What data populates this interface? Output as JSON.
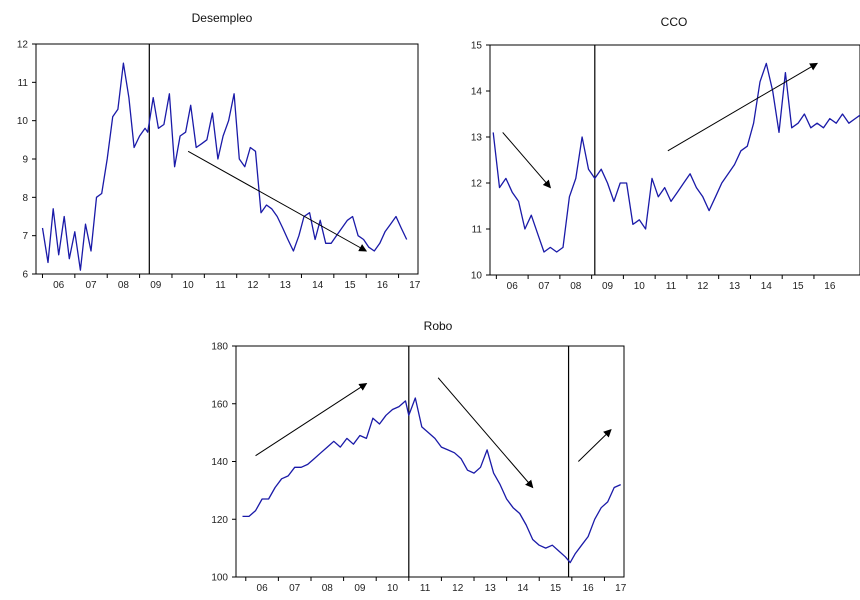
{
  "chart_data": [
    {
      "type": "line",
      "title": "Desempleo",
      "xlabel": "",
      "ylabel": "",
      "ylim": [
        6,
        12
      ],
      "yticks": [
        6,
        7,
        8,
        9,
        10,
        11,
        12
      ],
      "x_tick_labels": [
        "06",
        "07",
        "08",
        "09",
        "10",
        "11",
        "12",
        "13",
        "14",
        "15",
        "16",
        "17"
      ],
      "grid": false,
      "line_color": "#1a1aa8",
      "vertical_markers": [
        {
          "label": "09",
          "x": 2009.3
        }
      ],
      "series": [
        {
          "x": [
            2006.0,
            2006.17,
            2006.33,
            2006.5,
            2006.67,
            2006.83,
            2007.0,
            2007.17,
            2007.33,
            2007.5,
            2007.67,
            2007.83,
            2008.0,
            2008.17,
            2008.33,
            2008.5,
            2008.67,
            2008.83,
            2009.0,
            2009.17,
            2009.25,
            2009.42,
            2009.58,
            2009.75,
            2009.92,
            2010.08,
            2010.25,
            2010.42,
            2010.58,
            2010.75,
            2010.92,
            2011.08,
            2011.25,
            2011.42,
            2011.58,
            2011.75,
            2011.92,
            2012.08,
            2012.25,
            2012.42,
            2012.58,
            2012.75,
            2012.92,
            2013.08,
            2013.25,
            2013.42,
            2013.58,
            2013.75,
            2013.92,
            2014.08,
            2014.25,
            2014.42,
            2014.58,
            2014.75,
            2014.92,
            2015.08,
            2015.25,
            2015.42,
            2015.58,
            2015.75,
            2015.92,
            2016.08,
            2016.25,
            2016.42,
            2016.58,
            2016.75,
            2016.92,
            2017.08,
            2017.25
          ],
          "values": [
            7.2,
            6.3,
            7.7,
            6.5,
            7.5,
            6.4,
            7.1,
            6.1,
            7.3,
            6.6,
            8.0,
            8.1,
            9.0,
            10.1,
            10.3,
            11.5,
            10.6,
            9.3,
            9.6,
            9.8,
            9.7,
            10.6,
            9.8,
            9.9,
            10.7,
            8.8,
            9.6,
            9.7,
            10.4,
            9.3,
            9.4,
            9.5,
            10.2,
            9.0,
            9.6,
            10.0,
            10.7,
            9.0,
            8.8,
            9.3,
            9.2,
            7.6,
            7.8,
            7.7,
            7.5,
            7.2,
            6.9,
            6.6,
            7.0,
            7.5,
            7.6,
            6.9,
            7.4,
            6.8,
            6.8,
            7.0,
            7.2,
            7.4,
            7.5,
            7.0,
            6.9,
            6.7,
            6.6,
            6.8,
            7.1,
            7.3,
            7.5,
            7.2,
            6.9
          ]
        }
      ],
      "annotations": [
        {
          "type": "arrow",
          "from": [
            2010.5,
            9.2
          ],
          "to": [
            2016.0,
            6.6
          ]
        }
      ]
    },
    {
      "type": "line",
      "title": "CCO",
      "xlabel": "",
      "ylabel": "",
      "ylim": [
        10,
        15
      ],
      "yticks": [
        10,
        11,
        12,
        13,
        14,
        15
      ],
      "x_tick_labels": [
        "06",
        "07",
        "08",
        "09",
        "10",
        "11",
        "12",
        "13",
        "14",
        "15",
        "16",
        "17"
      ],
      "grid": false,
      "line_color": "#1a1aa8",
      "vertical_markers": [
        {
          "label": "09",
          "x": 2009.1
        }
      ],
      "series": [
        {
          "x": [
            2005.9,
            2006.1,
            2006.3,
            2006.5,
            2006.7,
            2006.9,
            2007.1,
            2007.3,
            2007.5,
            2007.7,
            2007.9,
            2008.1,
            2008.3,
            2008.5,
            2008.7,
            2008.9,
            2009.1,
            2009.3,
            2009.5,
            2009.7,
            2009.9,
            2010.1,
            2010.3,
            2010.5,
            2010.7,
            2010.9,
            2011.1,
            2011.3,
            2011.5,
            2011.7,
            2011.9,
            2012.1,
            2012.3,
            2012.5,
            2012.7,
            2012.9,
            2013.1,
            2013.3,
            2013.5,
            2013.7,
            2013.9,
            2014.1,
            2014.3,
            2014.5,
            2014.7,
            2014.9,
            2015.1,
            2015.3,
            2015.5,
            2015.7,
            2015.9,
            2016.1,
            2016.3,
            2016.5,
            2016.7,
            2016.9,
            2017.1,
            2017.3,
            2017.5
          ],
          "values": [
            13.1,
            11.9,
            12.1,
            11.8,
            11.6,
            11.0,
            11.3,
            10.9,
            10.5,
            10.6,
            10.5,
            10.6,
            11.7,
            12.1,
            13.0,
            12.3,
            12.1,
            12.3,
            12.0,
            11.6,
            12.0,
            12.0,
            11.1,
            11.2,
            11.0,
            12.1,
            11.7,
            11.9,
            11.6,
            11.8,
            12.0,
            12.2,
            11.9,
            11.7,
            11.4,
            11.7,
            12.0,
            12.2,
            12.4,
            12.7,
            12.8,
            13.3,
            14.2,
            14.6,
            14.0,
            13.1,
            14.4,
            13.2,
            13.3,
            13.5,
            13.2,
            13.3,
            13.2,
            13.4,
            13.3,
            13.5,
            13.3,
            13.4,
            13.5
          ]
        }
      ],
      "annotations": [
        {
          "type": "arrow",
          "from": [
            2006.2,
            13.1
          ],
          "to": [
            2007.7,
            11.9
          ]
        },
        {
          "type": "arrow",
          "from": [
            2011.4,
            12.7
          ],
          "to": [
            2016.1,
            14.6
          ]
        }
      ]
    },
    {
      "type": "line",
      "title": "Robo",
      "xlabel": "",
      "ylabel": "",
      "ylim": [
        100,
        180
      ],
      "yticks": [
        100,
        120,
        140,
        160,
        180
      ],
      "x_tick_labels": [
        "06",
        "07",
        "08",
        "09",
        "10",
        "11",
        "12",
        "13",
        "14",
        "15",
        "16",
        "17"
      ],
      "grid": false,
      "line_color": "#1a1aa8",
      "vertical_markers": [
        {
          "label": "11",
          "x": 2011.0
        },
        {
          "label": "16",
          "x": 2015.9
        }
      ],
      "series": [
        {
          "x": [
            2005.9,
            2006.1,
            2006.3,
            2006.5,
            2006.7,
            2006.9,
            2007.1,
            2007.3,
            2007.5,
            2007.7,
            2007.9,
            2008.1,
            2008.3,
            2008.5,
            2008.7,
            2008.9,
            2009.1,
            2009.3,
            2009.5,
            2009.7,
            2009.9,
            2010.1,
            2010.3,
            2010.5,
            2010.7,
            2010.9,
            2011.0,
            2011.2,
            2011.4,
            2011.6,
            2011.8,
            2012.0,
            2012.2,
            2012.4,
            2012.6,
            2012.8,
            2013.0,
            2013.2,
            2013.4,
            2013.6,
            2013.8,
            2014.0,
            2014.2,
            2014.4,
            2014.6,
            2014.8,
            2015.0,
            2015.2,
            2015.4,
            2015.6,
            2015.8,
            2015.95,
            2016.1,
            2016.3,
            2016.5,
            2016.7,
            2016.9,
            2017.1,
            2017.3,
            2017.5
          ],
          "values": [
            121,
            121,
            123,
            127,
            127,
            131,
            134,
            135,
            138,
            138,
            139,
            141,
            143,
            145,
            147,
            145,
            148,
            146,
            149,
            148,
            155,
            153,
            156,
            158,
            159,
            161,
            156,
            162,
            152,
            150,
            148,
            145,
            144,
            143,
            141,
            137,
            136,
            138,
            144,
            136,
            132,
            127,
            124,
            122,
            118,
            113,
            111,
            110,
            111,
            109,
            107,
            105,
            108,
            111,
            114,
            120,
            124,
            126,
            131,
            132
          ]
        }
      ],
      "annotations": [
        {
          "type": "arrow",
          "from": [
            2006.3,
            142
          ],
          "to": [
            2009.7,
            167
          ]
        },
        {
          "type": "arrow",
          "from": [
            2011.9,
            169
          ],
          "to": [
            2014.8,
            131
          ]
        },
        {
          "type": "arrow",
          "from": [
            2016.2,
            140
          ],
          "to": [
            2017.2,
            151
          ]
        }
      ]
    }
  ]
}
